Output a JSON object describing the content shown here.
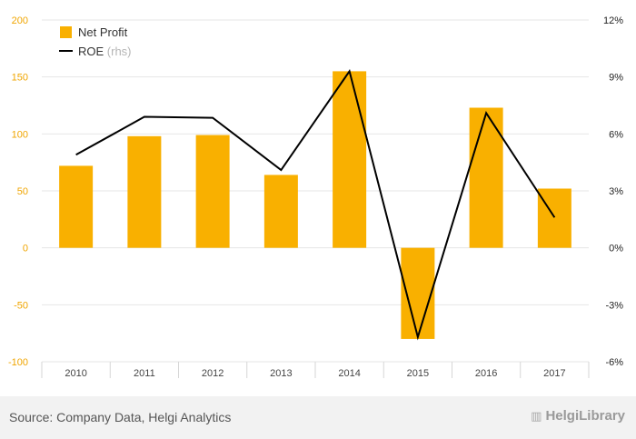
{
  "chart_data": {
    "type": "bar",
    "categories": [
      "2010",
      "2011",
      "2012",
      "2013",
      "2014",
      "2015",
      "2016",
      "2017"
    ],
    "series": [
      {
        "name": "Net Profit",
        "type": "bar",
        "axis": "left",
        "color": "#f9b000",
        "values": [
          72,
          98,
          99,
          64,
          155,
          -80,
          123,
          52
        ]
      },
      {
        "name": "ROE",
        "suffix": "(rhs)",
        "type": "line",
        "axis": "right",
        "color": "#000000",
        "values": [
          4.9,
          6.9,
          6.85,
          4.1,
          9.3,
          -4.7,
          7.1,
          1.6
        ]
      }
    ],
    "left_axis": {
      "min": -100,
      "max": 200,
      "ticks": [
        "200",
        "150",
        "100",
        "50",
        "0",
        "-50",
        "-100"
      ]
    },
    "right_axis": {
      "min": -6,
      "max": 12,
      "ticks": [
        "12%",
        "9%",
        "6%",
        "3%",
        "0%",
        "-3%",
        "-6%"
      ]
    },
    "legend": {
      "placement": "top-left"
    },
    "grid": true
  },
  "footer": {
    "source": "Source: Company Data, Helgi Analytics",
    "brand": "HelgiLibrary"
  },
  "colors": {
    "bar": "#f9b000",
    "line": "#000000",
    "axis_text": "#f0a500",
    "grid": "#e6e6e6"
  }
}
